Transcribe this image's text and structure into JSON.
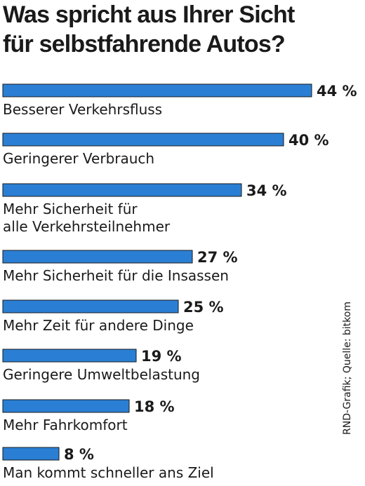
{
  "title_lines": [
    "Was spricht aus Ihrer Sicht",
    "für selbstfahrende Autos?"
  ],
  "source": "RND-Grafik; Quelle: bitkom",
  "colors": {
    "bar": "#2a7fd4",
    "text": "#1a1a1a"
  },
  "chart_data": {
    "type": "bar",
    "orientation": "horizontal",
    "title": "Was spricht aus Ihrer Sicht für selbstfahrende Autos?",
    "unit": "%",
    "xlim": [
      0,
      44
    ],
    "categories": [
      [
        "Besserer Verkehrsfluss"
      ],
      [
        "Geringerer Verbrauch"
      ],
      [
        "Mehr Sicherheit für",
        "alle Verkehrsteilnehmer"
      ],
      [
        "Mehr Sicherheit für die Insassen"
      ],
      [
        "Mehr Zeit für andere Dinge"
      ],
      [
        "Geringere Umweltbelastung"
      ],
      [
        "Mehr Fahrkomfort"
      ],
      [
        "Man kommt schneller ans Ziel"
      ]
    ],
    "values": [
      44,
      40,
      34,
      27,
      25,
      19,
      18,
      8
    ],
    "value_labels": [
      "44 %",
      "40 %",
      "34 %",
      "27 %",
      "25 %",
      "19 %",
      "18 %",
      "8 %"
    ]
  }
}
